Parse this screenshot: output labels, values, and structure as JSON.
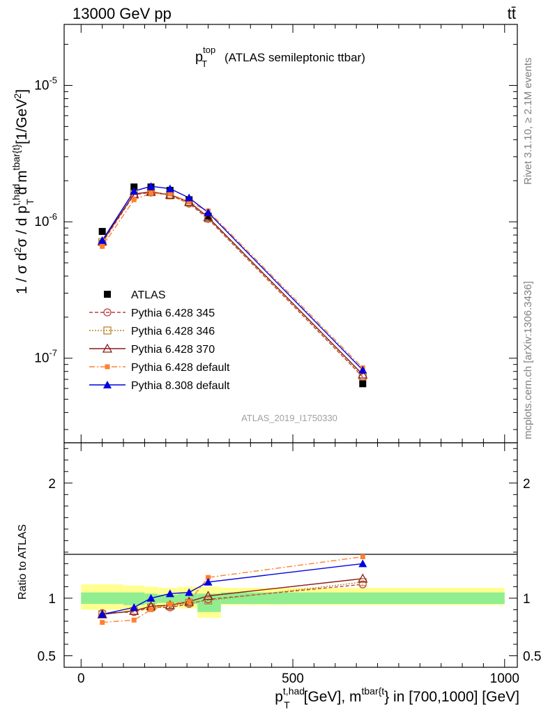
{
  "header": {
    "left": "13000 GeV pp",
    "right": "tt̄"
  },
  "title": {
    "main": "p",
    "sup": "top",
    "sub": "T",
    "rest": "(ATLAS semileptonic ttbar)"
  },
  "watermark": "ATLAS_2019_I1750330",
  "side_labels": {
    "rivet": "Rivet 3.1.10, ≥ 2.1M events",
    "mcplots": "mcplots.cern.ch [arXiv:1306.3436]"
  },
  "colors": {
    "atlas": "#000000",
    "py345": "#b84040",
    "py346": "#b8862e",
    "py370": "#8b1a1a",
    "py6def": "#ff8030",
    "py8": "#0000e0",
    "band_inner": "#90ee90",
    "band_outer": "#ffff90"
  },
  "chart_data": [
    {
      "type": "scatter",
      "panel": "main",
      "xlabel": "p_T^{t,had} [GeV], m^{tbar{t}} in [700,1000] [GeV]",
      "ylabel": "1 / σ d²σ / d p_T^{t,had} d m^{tbar{t}} [1/GeV²]",
      "yscale": "log",
      "xlim": [
        -40,
        1030
      ],
      "ylim": [
        2.4e-08,
        2.8e-05
      ],
      "y_ticks": [
        "10^-7",
        "10^-6",
        "10^-5"
      ],
      "x": [
        50,
        125,
        165,
        210,
        255,
        300,
        665
      ],
      "series": [
        {
          "name": "ATLAS",
          "key": "atlas",
          "marker": "square",
          "values": [
            8.5e-07,
            1.8e-06,
            1.8e-06,
            1.7e-06,
            1.45e-06,
            1.1e-06,
            6.5e-08
          ]
        },
        {
          "name": "Pythia 6.428 345",
          "key": "py345",
          "marker": "circle",
          "dash": "5,3",
          "values": [
            7e-07,
            1.58e-06,
            1.64e-06,
            1.57e-06,
            1.36e-06,
            1.05e-06,
            7.3e-08
          ]
        },
        {
          "name": "Pythia 6.428 346",
          "key": "py346",
          "marker": "square-open",
          "dash": "2,2",
          "values": [
            7.1e-07,
            1.6e-06,
            1.65e-06,
            1.56e-06,
            1.38e-06,
            1.06e-06,
            7.4e-08
          ]
        },
        {
          "name": "Pythia 6.428 370",
          "key": "py370",
          "marker": "triangle-open",
          "dash": "",
          "values": [
            7.2e-07,
            1.6e-06,
            1.66e-06,
            1.58e-06,
            1.4e-06,
            1.08e-06,
            7.6e-08
          ]
        },
        {
          "name": "Pythia 6.428 default",
          "key": "py6def",
          "marker": "square-small",
          "dash": "8,3,2,3",
          "values": [
            6.6e-07,
            1.45e-06,
            1.62e-06,
            1.6e-06,
            1.4e-06,
            1.2e-06,
            8.5e-08
          ]
        },
        {
          "name": "Pythia 8.308 default",
          "key": "py8",
          "marker": "triangle",
          "dash": "",
          "values": [
            7.3e-07,
            1.68e-06,
            1.82e-06,
            1.75e-06,
            1.5e-06,
            1.17e-06,
            8.2e-08
          ]
        }
      ]
    },
    {
      "type": "line",
      "panel": "ratio",
      "ylabel": "Ratio to ATLAS",
      "xlim": [
        -40,
        1030
      ],
      "ylim": [
        0.4,
        2.35
      ],
      "y_ticks": [
        "0.5",
        "1",
        "2"
      ],
      "x_ticks": [
        "0",
        "500",
        "1000"
      ],
      "x": [
        50,
        125,
        165,
        210,
        255,
        300,
        665
      ],
      "band_edges": [
        0,
        100,
        150,
        180,
        230,
        275,
        330,
        1000
      ],
      "band_inner": [
        [
          0.95,
          1.05
        ],
        [
          0.94,
          1.05
        ],
        [
          0.95,
          1.04
        ],
        [
          0.96,
          1.03
        ],
        [
          0.95,
          1.04
        ],
        [
          0.88,
          1.04
        ],
        [
          0.95,
          1.05
        ]
      ],
      "band_outer": [
        [
          0.9,
          1.12
        ],
        [
          0.89,
          1.11
        ],
        [
          0.9,
          1.1
        ],
        [
          0.92,
          1.09
        ],
        [
          0.91,
          1.1
        ],
        [
          0.83,
          1.1
        ],
        [
          0.94,
          1.09
        ]
      ],
      "series": [
        {
          "name": "Pythia 6.428 345",
          "key": "py345",
          "marker": "circle",
          "dash": "5,3",
          "values": [
            0.87,
            0.88,
            0.92,
            0.92,
            0.95,
            0.99,
            1.12
          ]
        },
        {
          "name": "Pythia 6.428 346",
          "key": "py346",
          "marker": "square-open",
          "dash": "2,2",
          "values": [
            0.86,
            0.89,
            0.92,
            0.93,
            0.96,
            0.98,
            1.14
          ]
        },
        {
          "name": "Pythia 6.428 370",
          "key": "py370",
          "marker": "triangle-open",
          "dash": "",
          "values": [
            0.86,
            0.89,
            0.93,
            0.94,
            0.97,
            1.02,
            1.17
          ]
        },
        {
          "name": "Pythia 6.428 default",
          "key": "py6def",
          "marker": "square-small",
          "dash": "8,3,2,3",
          "values": [
            0.79,
            0.81,
            0.9,
            0.95,
            0.97,
            1.18,
            1.36
          ]
        },
        {
          "name": "Pythia 8.308 default",
          "key": "py8",
          "marker": "triangle",
          "dash": "",
          "values": [
            0.86,
            0.92,
            1.0,
            1.04,
            1.05,
            1.14,
            1.3
          ]
        }
      ]
    }
  ]
}
